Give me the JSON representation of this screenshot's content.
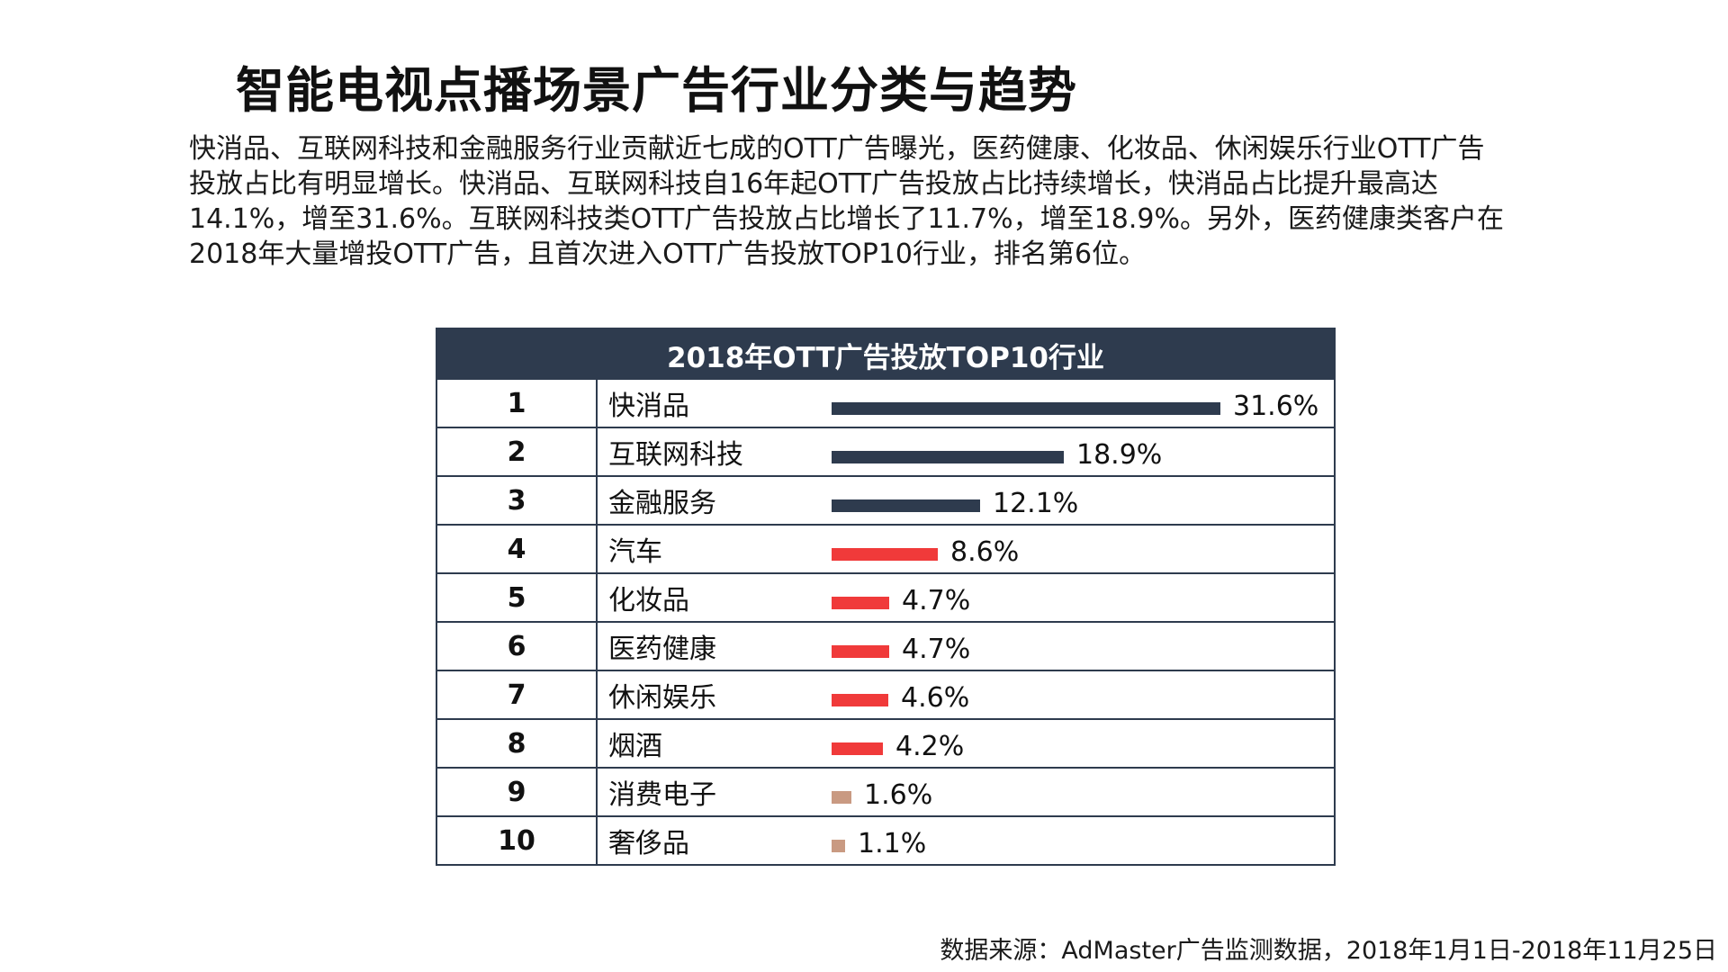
{
  "page": {
    "title": "智能电视点播场景广告行业分类与趋势",
    "intro_lines": [
      "快消品、互联网科技和金融服务行业贡献近七成的OTT广告曝光，医药健康、化妆品、休闲娱乐行业OTT广告",
      "投放占比有明显增长。快消品、互联网科技自16年起OTT广告投放占比持续增长，快消品占比提升最高达",
      "14.1%，增至31.6%。互联网科技类OTT广告投放占比增长了11.7%，增至18.9%。另外，医药健康类客户在",
      "2018年大量增投OTT广告，且首次进入OTT广告投放TOP10行业，排名第6位。"
    ],
    "source": "数据来源：AdMaster广告监测数据，2018年1月1日-2018年11月25日"
  },
  "chart_data": {
    "type": "bar",
    "orientation": "horizontal",
    "title": "2018年OTT广告投放TOP10行业",
    "unit": "%",
    "ranks": [
      "1",
      "2",
      "3",
      "4",
      "5",
      "6",
      "7",
      "8",
      "9",
      "10"
    ],
    "categories": [
      "快消品",
      "互联网科技",
      "金融服务",
      "汽车",
      "化妆品",
      "医药健康",
      "休闲娱乐",
      "烟酒",
      "消费电子",
      "奢侈品"
    ],
    "values": [
      31.6,
      18.9,
      12.1,
      8.6,
      4.7,
      4.7,
      4.6,
      4.2,
      1.6,
      1.1
    ],
    "value_labels": [
      "31.6%",
      "18.9%",
      "12.1%",
      "8.6%",
      "4.7%",
      "4.7%",
      "4.6%",
      "4.2%",
      "1.6%",
      "1.1%"
    ],
    "bar_colors": [
      "#2e3b4e",
      "#2e3b4e",
      "#2e3b4e",
      "#f03a3a",
      "#f03a3a",
      "#f03a3a",
      "#f03a3a",
      "#f03a3a",
      "#c99a82",
      "#c99a82"
    ],
    "xlim": [
      0,
      31.6
    ],
    "grid": false,
    "legend": "none"
  }
}
